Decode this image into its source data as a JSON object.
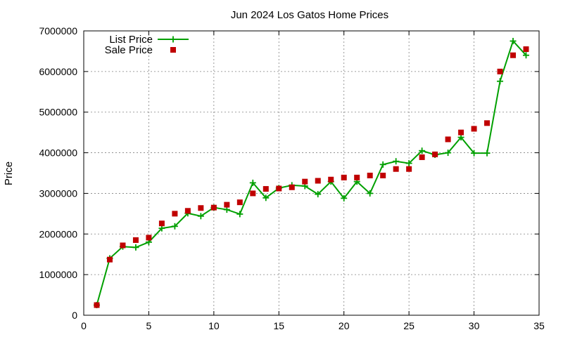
{
  "chart_data": {
    "type": "line",
    "title": "Jun 2024 Los Gatos Home Prices",
    "xlabel": "",
    "ylabel": "Price",
    "xlim": [
      0,
      35
    ],
    "ylim": [
      0,
      7000000
    ],
    "x_ticks": [
      0,
      5,
      10,
      15,
      20,
      25,
      30,
      35
    ],
    "y_ticks": [
      0,
      1000000,
      2000000,
      3000000,
      4000000,
      5000000,
      6000000,
      7000000
    ],
    "x_tick_labels": [
      "0",
      "5",
      "10",
      "15",
      "20",
      "25",
      "30",
      "35"
    ],
    "y_tick_labels": [
      "0",
      "1000000",
      "2000000",
      "3000000",
      "4000000",
      "5000000",
      "6000000",
      "7000000"
    ],
    "grid": true,
    "legend_position": "top-left",
    "x": [
      1,
      2,
      3,
      4,
      5,
      6,
      7,
      8,
      9,
      10,
      11,
      12,
      13,
      14,
      15,
      16,
      17,
      18,
      19,
      20,
      21,
      22,
      23,
      24,
      25,
      26,
      27,
      28,
      29,
      30,
      31,
      32,
      33,
      34
    ],
    "series": [
      {
        "name": "List Price",
        "style": "line+cross",
        "color": "#00a000",
        "values": [
          250000,
          1400000,
          1690000,
          1670000,
          1800000,
          2140000,
          2190000,
          2510000,
          2440000,
          2650000,
          2600000,
          2490000,
          3260000,
          2890000,
          3130000,
          3200000,
          3180000,
          2980000,
          3290000,
          2880000,
          3290000,
          3000000,
          3710000,
          3790000,
          3740000,
          4050000,
          3950000,
          4000000,
          4380000,
          3990000,
          3990000,
          5760000,
          6750000,
          6400000
        ]
      },
      {
        "name": "Sale Price",
        "style": "square",
        "color": "#c00000",
        "values": [
          250000,
          1370000,
          1720000,
          1850000,
          1910000,
          2260000,
          2500000,
          2570000,
          2640000,
          2650000,
          2720000,
          2780000,
          3000000,
          3110000,
          3120000,
          3150000,
          3290000,
          3310000,
          3340000,
          3390000,
          3390000,
          3440000,
          3440000,
          3600000,
          3600000,
          3890000,
          3960000,
          4330000,
          4500000,
          4590000,
          4730000,
          6000000,
          6400000,
          6550000
        ]
      }
    ]
  }
}
